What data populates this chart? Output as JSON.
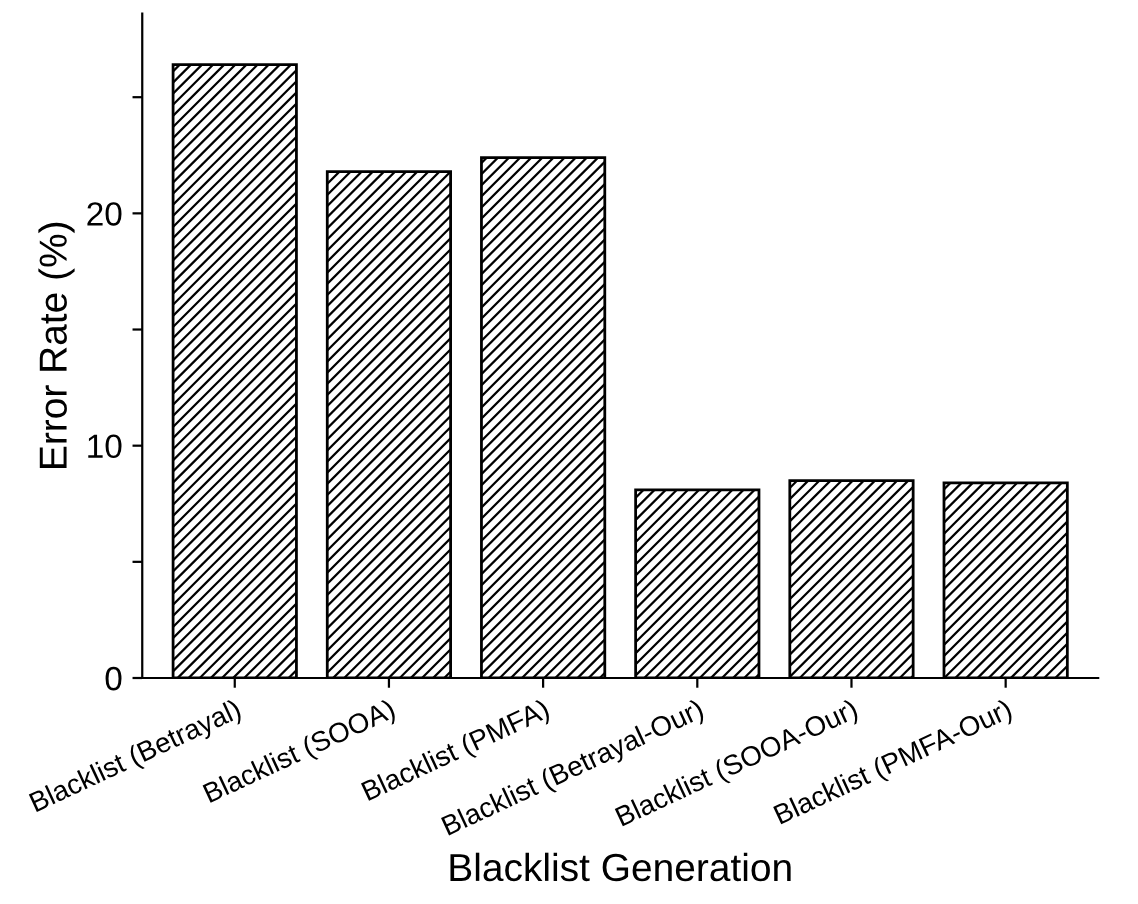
{
  "chart_data": {
    "type": "bar",
    "xlabel": "Blacklist Generation",
    "ylabel": "Error Rate (%)",
    "categories": [
      "Blacklist (Betrayal)",
      "Blacklist (SOOA)",
      "Blacklist (PMFA)",
      "Blacklist (Betrayal-Our)",
      "Blacklist (SOOA-Our)",
      "Blacklist (PMFA-Our)"
    ],
    "values": [
      26.4,
      21.8,
      22.4,
      8.1,
      8.5,
      8.4
    ],
    "color": "#000000",
    "ylim": [
      0,
      28.6
    ],
    "yticks": [
      0,
      {
        "value": 5,
        "label": null
      },
      10,
      {
        "value": 15,
        "label": null
      },
      20,
      {
        "value": 25,
        "label": null
      }
    ],
    "grid": false,
    "legend": false
  }
}
